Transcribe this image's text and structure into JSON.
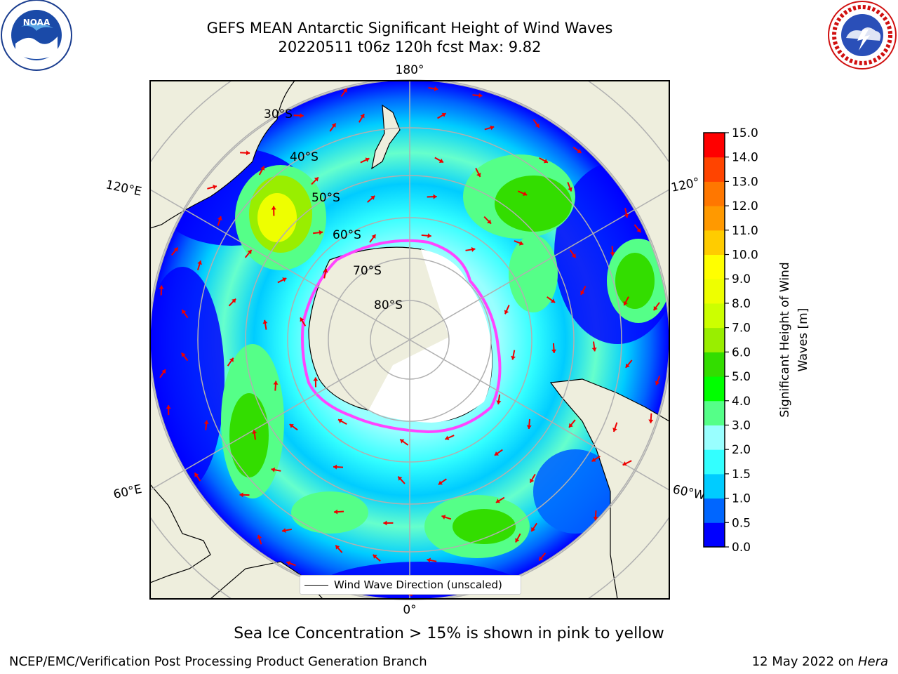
{
  "title_line1": "GEFS MEAN Antarctic Significant Height of Wind Waves",
  "title_line2": "20220511 t06z 120h fcst   Max: 9.82",
  "footer_note": "Sea Ice Concentration > 15% is shown in pink to yellow",
  "credit": "NCEP/EMC/Verification Post Processing Product Generation Branch",
  "date_text": "12 May 2022 on ",
  "date_machine": "Hera",
  "logos": {
    "left": "noaa-logo",
    "right": "national-weather-service-logo"
  },
  "map": {
    "longitude_labels": [
      "180°",
      "120°E",
      "120°",
      "60°E",
      "60°W",
      "0°"
    ],
    "latitude_labels": [
      "30°S",
      "40°S",
      "50°S",
      "60°S",
      "70°S",
      "80°S"
    ],
    "legend_label": "Wind Wave Direction (unscaled)",
    "colors": {
      "land": "#eeeedd",
      "ice": "#ffffff",
      "ice_edge": "#ff44ff",
      "arrows": "#ee0000",
      "gridlines": "#b0b0b0"
    }
  },
  "chart_data": {
    "type": "heatmap",
    "projection": "south-polar-stereographic",
    "variable": "Significant Height of Wind Waves [m]",
    "max_value": 9.82,
    "colorbar": {
      "label": "Significant Height of Wind Waves [m]",
      "range": [
        0.0,
        15.0
      ],
      "ticks": [
        "0.0",
        "0.5",
        "1.0",
        "1.5",
        "2.0",
        "3.0",
        "4.0",
        "5.0",
        "6.0",
        "7.0",
        "8.0",
        "9.0",
        "10.0",
        "11.0",
        "12.0",
        "13.0",
        "14.0",
        "15.0"
      ],
      "colors": [
        "#0000ff",
        "#0066ff",
        "#00ccff",
        "#33ffff",
        "#99ffff",
        "#55ff88",
        "#00ff00",
        "#33dd00",
        "#99ee00",
        "#ccff00",
        "#eeff00",
        "#ffff00",
        "#ffcc00",
        "#ff9900",
        "#ff7700",
        "#ff4400",
        "#ff0000"
      ]
    }
  }
}
